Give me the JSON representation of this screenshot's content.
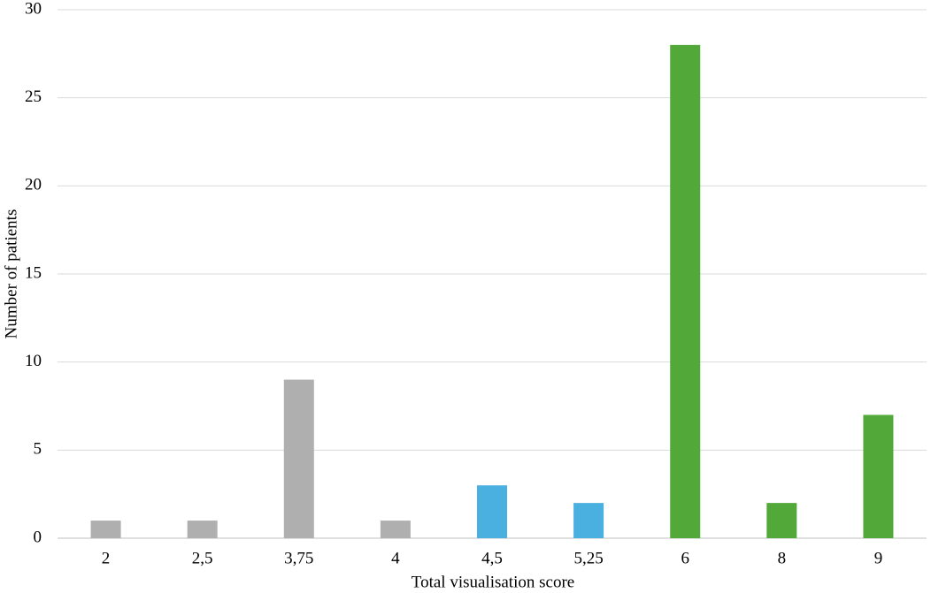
{
  "chart_data": {
    "type": "bar",
    "x_label": "Total visualisation score",
    "y_label": "Number of patients",
    "categories": [
      "2",
      "2,5",
      "3,75",
      "4",
      "4,5",
      "5,25",
      "6",
      "8",
      "9"
    ],
    "values": [
      1,
      1,
      9,
      1,
      3,
      2,
      28,
      2,
      7
    ],
    "colors": [
      "#afafaf",
      "#afafaf",
      "#afafaf",
      "#afafaf",
      "#4ab0e0",
      "#4ab0e0",
      "#52a838",
      "#52a838",
      "#52a838"
    ],
    "ylim": [
      0,
      30
    ],
    "yticks": [
      0,
      5,
      10,
      15,
      20,
      25,
      30
    ],
    "grid": true
  }
}
